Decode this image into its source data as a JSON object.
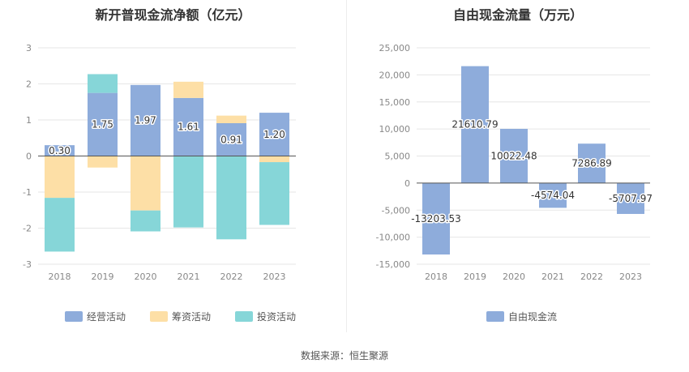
{
  "source": "数据来源：恒生聚源",
  "chart_data": [
    {
      "type": "bar",
      "stacked": true,
      "title": "新开普现金流净额（亿元）",
      "categories": [
        "2018",
        "2019",
        "2020",
        "2021",
        "2022",
        "2023"
      ],
      "ylim": [
        -3,
        3
      ],
      "yticks": [
        -3,
        -2,
        -1,
        0,
        1,
        2,
        3
      ],
      "grid": true,
      "legend_position": "bottom",
      "series": [
        {
          "name": "经营活动",
          "color": "#8eacdb",
          "values": [
            0.3,
            1.75,
            1.97,
            1.61,
            0.91,
            1.2
          ]
        },
        {
          "name": "筹资活动",
          "color": "#fddfa6",
          "values": [
            -1.16,
            -0.32,
            -1.51,
            0.45,
            0.21,
            -0.17
          ]
        },
        {
          "name": "投资活动",
          "color": "#86d6d8",
          "values": [
            -1.49,
            0.52,
            -0.58,
            -1.98,
            -2.31,
            -1.74
          ]
        }
      ],
      "data_labels": [
        "0.30",
        "1.75",
        "1.97",
        "1.61",
        "0.91",
        "1.20"
      ]
    },
    {
      "type": "bar",
      "title": "自由现金流量（万元）",
      "categories": [
        "2018",
        "2019",
        "2020",
        "2021",
        "2022",
        "2023"
      ],
      "ylim": [
        -15000,
        25000
      ],
      "yticks": [
        -15000,
        -10000,
        -5000,
        0,
        5000,
        10000,
        15000,
        20000,
        25000
      ],
      "ytick_labels": [
        "-15,000",
        "-10,000",
        "-5,000",
        "0",
        "5,000",
        "10,000",
        "15,000",
        "20,000",
        "25,000"
      ],
      "grid": true,
      "legend_position": "bottom",
      "series": [
        {
          "name": "自由现金流",
          "color": "#8eacdb",
          "values": [
            -13203.53,
            21610.79,
            10022.48,
            -4574.04,
            7286.89,
            -5707.97
          ]
        }
      ],
      "data_labels": [
        "-13203.53",
        "21610.79",
        "10022.48",
        "-4574.04",
        "7286.89",
        "-5707.97"
      ]
    }
  ]
}
